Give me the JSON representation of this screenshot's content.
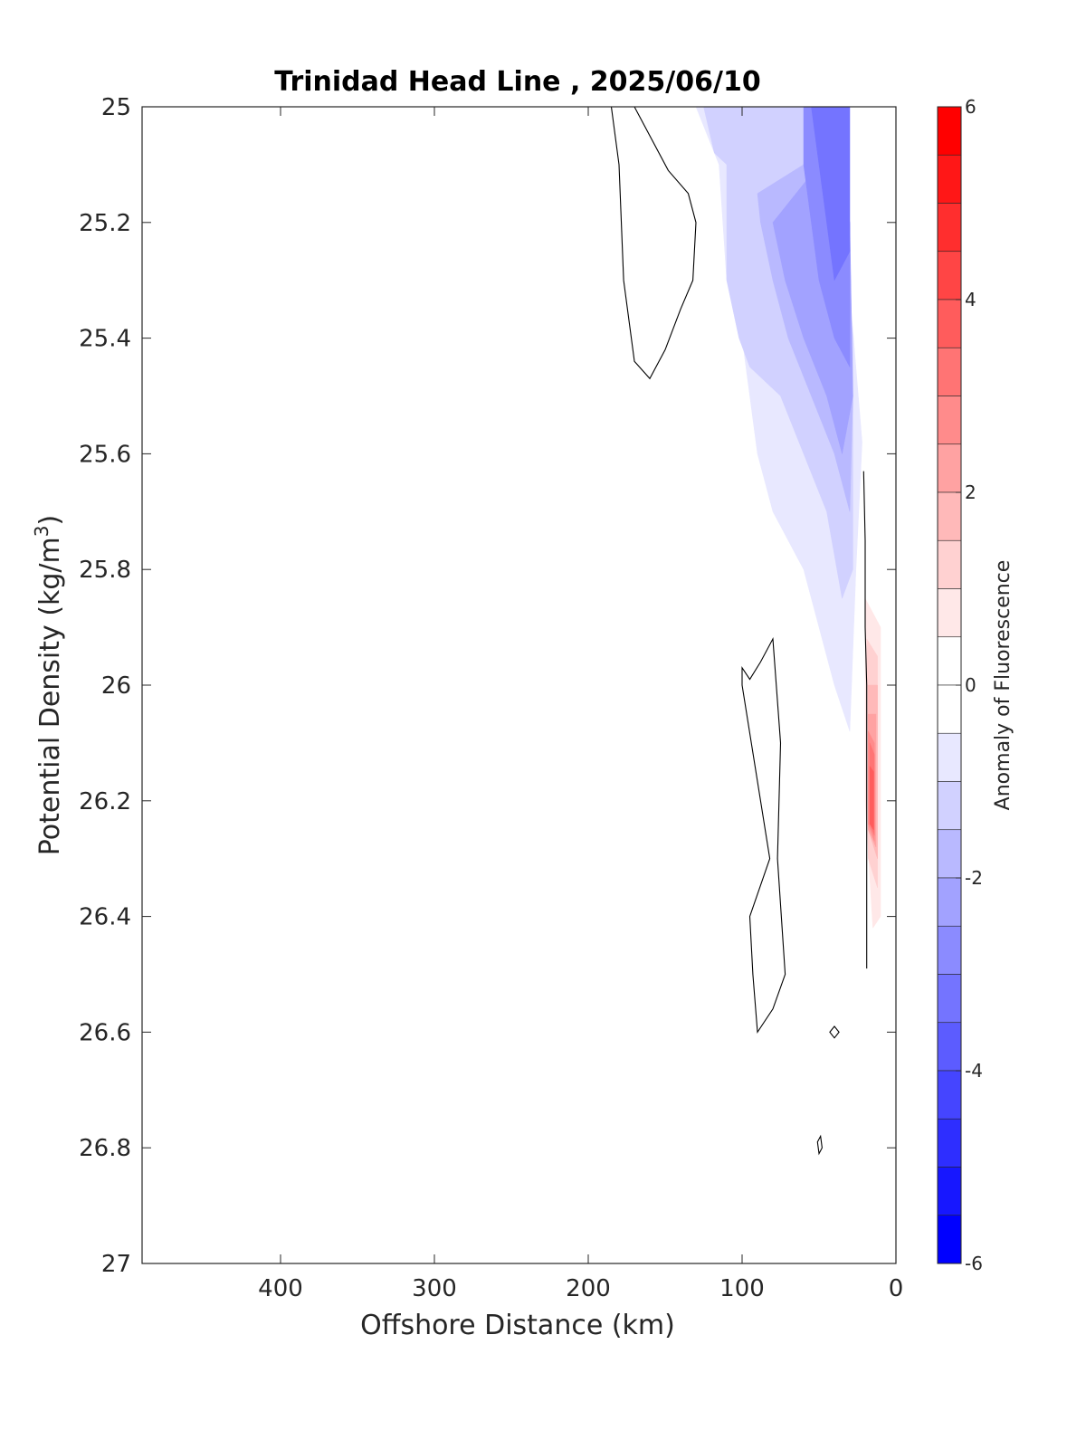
{
  "chart_data": {
    "type": "heatmap",
    "title": "Trinidad Head Line , 2025/06/10",
    "xlabel": "Offshore Distance (km)",
    "ylabel": {
      "text": "Potential Density (kg/m",
      "superscript": "3",
      "suffix": ")"
    },
    "xlim": [
      490,
      0
    ],
    "x_reversed": true,
    "ylim": [
      25,
      27
    ],
    "y_reversed": true,
    "x_ticks": [
      400,
      300,
      200,
      100,
      0
    ],
    "x_tick_labels": [
      "400",
      "300",
      "200",
      "100",
      "0"
    ],
    "y_ticks": [
      25,
      25.2,
      25.4,
      25.6,
      25.8,
      26,
      26.2,
      26.4,
      26.6,
      26.8,
      27
    ],
    "y_tick_labels": [
      "25",
      "25.2",
      "25.4",
      "25.6",
      "25.8",
      "26",
      "26.2",
      "26.4",
      "26.6",
      "26.8",
      "27"
    ],
    "grid": false,
    "colorbar": {
      "label": "Anomaly of Fluorescence",
      "range": [
        -6,
        6
      ],
      "ticks": [
        6,
        4,
        2,
        0,
        -2,
        -4,
        -6
      ],
      "tick_labels": [
        "6",
        "4",
        "2",
        "0",
        "-2",
        "-4",
        "-6"
      ],
      "levels": [
        {
          "min": 5.5,
          "max": 6.0,
          "color": "#ff0000"
        },
        {
          "min": 5.0,
          "max": 5.5,
          "color": "#ff1717"
        },
        {
          "min": 4.5,
          "max": 5.0,
          "color": "#ff2e2e"
        },
        {
          "min": 4.0,
          "max": 4.5,
          "color": "#ff4545"
        },
        {
          "min": 3.5,
          "max": 4.0,
          "color": "#ff5c5c"
        },
        {
          "min": 3.0,
          "max": 3.5,
          "color": "#ff7474"
        },
        {
          "min": 2.5,
          "max": 3.0,
          "color": "#ff8b8b"
        },
        {
          "min": 2.0,
          "max": 2.5,
          "color": "#ffa2a2"
        },
        {
          "min": 1.5,
          "max": 2.0,
          "color": "#ffb9b9"
        },
        {
          "min": 1.0,
          "max": 1.5,
          "color": "#ffd1d1"
        },
        {
          "min": 0.5,
          "max": 1.0,
          "color": "#ffe8e8"
        },
        {
          "min": 0.0,
          "max": 0.5,
          "color": "#ffffff"
        },
        {
          "min": -0.5,
          "max": 0.0,
          "color": "#ffffff"
        },
        {
          "min": -1.0,
          "max": -0.5,
          "color": "#e8e8ff"
        },
        {
          "min": -1.5,
          "max": -1.0,
          "color": "#d1d1ff"
        },
        {
          "min": -2.0,
          "max": -1.5,
          "color": "#b9b9ff"
        },
        {
          "min": -2.5,
          "max": -2.0,
          "color": "#a2a2ff"
        },
        {
          "min": -3.0,
          "max": -2.5,
          "color": "#8b8bff"
        },
        {
          "min": -3.5,
          "max": -3.0,
          "color": "#7474ff"
        },
        {
          "min": -4.0,
          "max": -3.5,
          "color": "#5c5cff"
        },
        {
          "min": -4.5,
          "max": -4.0,
          "color": "#4545ff"
        },
        {
          "min": -5.0,
          "max": -4.5,
          "color": "#2e2eff"
        },
        {
          "min": -5.5,
          "max": -5.0,
          "color": "#1717ff"
        },
        {
          "min": -6.0,
          "max": -5.5,
          "color": "#0000ff"
        }
      ]
    },
    "filled_regions": [
      {
        "level": -0.75,
        "color": "#e8e8ff",
        "points": [
          [
            130,
            25
          ],
          [
            115,
            25.1
          ],
          [
            110,
            25.3
          ],
          [
            100,
            25.4
          ],
          [
            95,
            25.5
          ],
          [
            90,
            25.6
          ],
          [
            80,
            25.7
          ],
          [
            60,
            25.8
          ],
          [
            50,
            25.9
          ],
          [
            40,
            26.0
          ],
          [
            30,
            26.08
          ],
          [
            26,
            25.8
          ],
          [
            22,
            25.58
          ],
          [
            40,
            25.0
          ]
        ]
      },
      {
        "level": -1.25,
        "color": "#d1d1ff",
        "points": [
          [
            125,
            25
          ],
          [
            118,
            25.08
          ],
          [
            110,
            25.1
          ],
          [
            110,
            25.3
          ],
          [
            102,
            25.4
          ],
          [
            95,
            25.45
          ],
          [
            75,
            25.5
          ],
          [
            60,
            25.6
          ],
          [
            45,
            25.7
          ],
          [
            35,
            25.85
          ],
          [
            28,
            25.8
          ],
          [
            28,
            25.4
          ],
          [
            40,
            25.0
          ]
        ]
      },
      {
        "level": -1.75,
        "color": "#b9b9ff",
        "points": [
          [
            90,
            25.15
          ],
          [
            88,
            25.2
          ],
          [
            80,
            25.3
          ],
          [
            70,
            25.4
          ],
          [
            55,
            25.5
          ],
          [
            40,
            25.6
          ],
          [
            30,
            25.7
          ],
          [
            28,
            25.5
          ],
          [
            40,
            25.2
          ],
          [
            60,
            25.1
          ]
        ]
      },
      {
        "level": -2.25,
        "color": "#a2a2ff",
        "points": [
          [
            80,
            25.2
          ],
          [
            72,
            25.3
          ],
          [
            60,
            25.4
          ],
          [
            45,
            25.5
          ],
          [
            35,
            25.6
          ],
          [
            28,
            25.5
          ],
          [
            30,
            25.2
          ],
          [
            50,
            25.1
          ]
        ]
      },
      {
        "level": -2.75,
        "color": "#8b8bff",
        "points": [
          [
            60,
            25.0
          ],
          [
            60,
            25.1
          ],
          [
            55,
            25.2
          ],
          [
            50,
            25.3
          ],
          [
            40,
            25.4
          ],
          [
            30,
            25.45
          ],
          [
            30,
            25.2
          ],
          [
            40,
            25.0
          ]
        ]
      },
      {
        "level": -3.25,
        "color": "#7474ff",
        "points": [
          [
            55,
            25.0
          ],
          [
            50,
            25.1
          ],
          [
            45,
            25.2
          ],
          [
            40,
            25.3
          ],
          [
            30,
            25.25
          ],
          [
            30,
            25.0
          ]
        ]
      },
      {
        "level": 0.75,
        "color": "#ffe8e8",
        "points": [
          [
            20,
            25.85
          ],
          [
            10,
            25.9
          ],
          [
            10,
            26.4
          ],
          [
            15,
            26.42
          ],
          [
            20,
            26.2
          ]
        ]
      },
      {
        "level": 1.25,
        "color": "#ffd1d1",
        "points": [
          [
            19,
            25.92
          ],
          [
            12,
            25.95
          ],
          [
            12,
            26.35
          ],
          [
            18,
            26.3
          ]
        ]
      },
      {
        "level": 1.75,
        "color": "#ffb9b9",
        "points": [
          [
            18,
            26.0
          ],
          [
            12,
            26.0
          ],
          [
            12,
            26.3
          ],
          [
            18,
            26.25
          ]
        ]
      },
      {
        "level": 2.25,
        "color": "#ffa2a2",
        "points": [
          [
            18,
            26.05
          ],
          [
            13,
            26.05
          ],
          [
            13,
            26.28
          ],
          [
            18,
            26.25
          ]
        ]
      },
      {
        "level": 2.75,
        "color": "#ff8b8b",
        "points": [
          [
            18,
            26.08
          ],
          [
            14,
            26.1
          ],
          [
            14,
            26.27
          ],
          [
            18,
            26.24
          ]
        ]
      },
      {
        "level": 3.25,
        "color": "#ff7474",
        "points": [
          [
            17,
            26.1
          ],
          [
            14,
            26.12
          ],
          [
            14,
            26.26
          ],
          [
            17,
            26.24
          ]
        ]
      },
      {
        "level": 3.75,
        "color": "#ff5c5c",
        "points": [
          [
            17,
            26.14
          ],
          [
            14.5,
            26.15
          ],
          [
            14.5,
            26.25
          ],
          [
            17,
            26.24
          ]
        ]
      }
    ],
    "contour_lines": [
      {
        "level": 0,
        "closed": true,
        "points": [
          [
            185,
            25
          ],
          [
            180,
            25.1
          ],
          [
            177,
            25.3
          ],
          [
            170,
            25.44
          ],
          [
            160,
            25.47
          ],
          [
            150,
            25.42
          ],
          [
            140,
            25.35
          ],
          [
            132,
            25.3
          ],
          [
            130,
            25.2
          ],
          [
            135,
            25.15
          ],
          [
            148,
            25.11
          ],
          [
            170,
            25.0
          ]
        ]
      },
      {
        "level": 0,
        "closed": false,
        "points": [
          [
            21,
            25.63
          ],
          [
            20,
            25.75
          ],
          [
            20,
            25.9
          ],
          [
            19,
            26.0
          ],
          [
            19,
            26.49
          ]
        ]
      },
      {
        "level": 0,
        "closed": true,
        "points": [
          [
            100,
            25.97
          ],
          [
            95,
            25.99
          ],
          [
            88,
            25.96
          ],
          [
            80,
            25.92
          ],
          [
            75,
            26.1
          ],
          [
            77,
            26.3
          ],
          [
            72,
            26.5
          ],
          [
            80,
            26.56
          ],
          [
            90,
            26.6
          ],
          [
            93,
            26.5
          ],
          [
            95,
            26.4
          ],
          [
            82,
            26.3
          ],
          [
            100,
            26.0
          ]
        ]
      },
      {
        "level": 0,
        "closed": true,
        "points": [
          [
            43,
            26.6
          ],
          [
            40,
            26.59
          ],
          [
            37,
            26.6
          ],
          [
            40,
            26.61
          ]
        ]
      },
      {
        "level": 0,
        "closed": true,
        "points": [
          [
            51,
            26.79
          ],
          [
            49,
            26.78
          ],
          [
            48,
            26.8
          ],
          [
            50,
            26.81
          ]
        ]
      }
    ]
  }
}
